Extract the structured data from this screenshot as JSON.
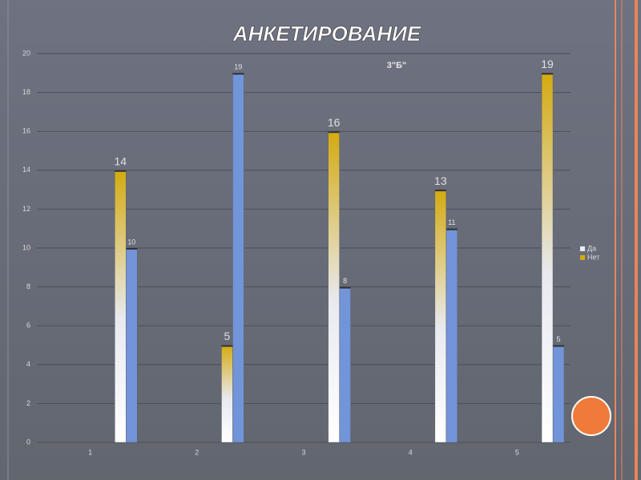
{
  "chart_data": {
    "type": "bar",
    "title": "АНКЕТИРОВАНИЕ",
    "subtitle": "3\"Б\"",
    "categories": [
      "1",
      "2",
      "3",
      "4",
      "5"
    ],
    "series": [
      {
        "name": "Да",
        "color": "#7294d8",
        "values": [
          10,
          19,
          8,
          11,
          5
        ]
      },
      {
        "name": "Нет",
        "color": "#d4aa10",
        "values": [
          14,
          5,
          16,
          13,
          19
        ]
      }
    ],
    "ylim": [
      0,
      20
    ],
    "yticks": [
      0,
      2,
      4,
      6,
      8,
      10,
      12,
      14,
      16,
      18,
      20
    ],
    "grid": true,
    "legend": "right"
  }
}
